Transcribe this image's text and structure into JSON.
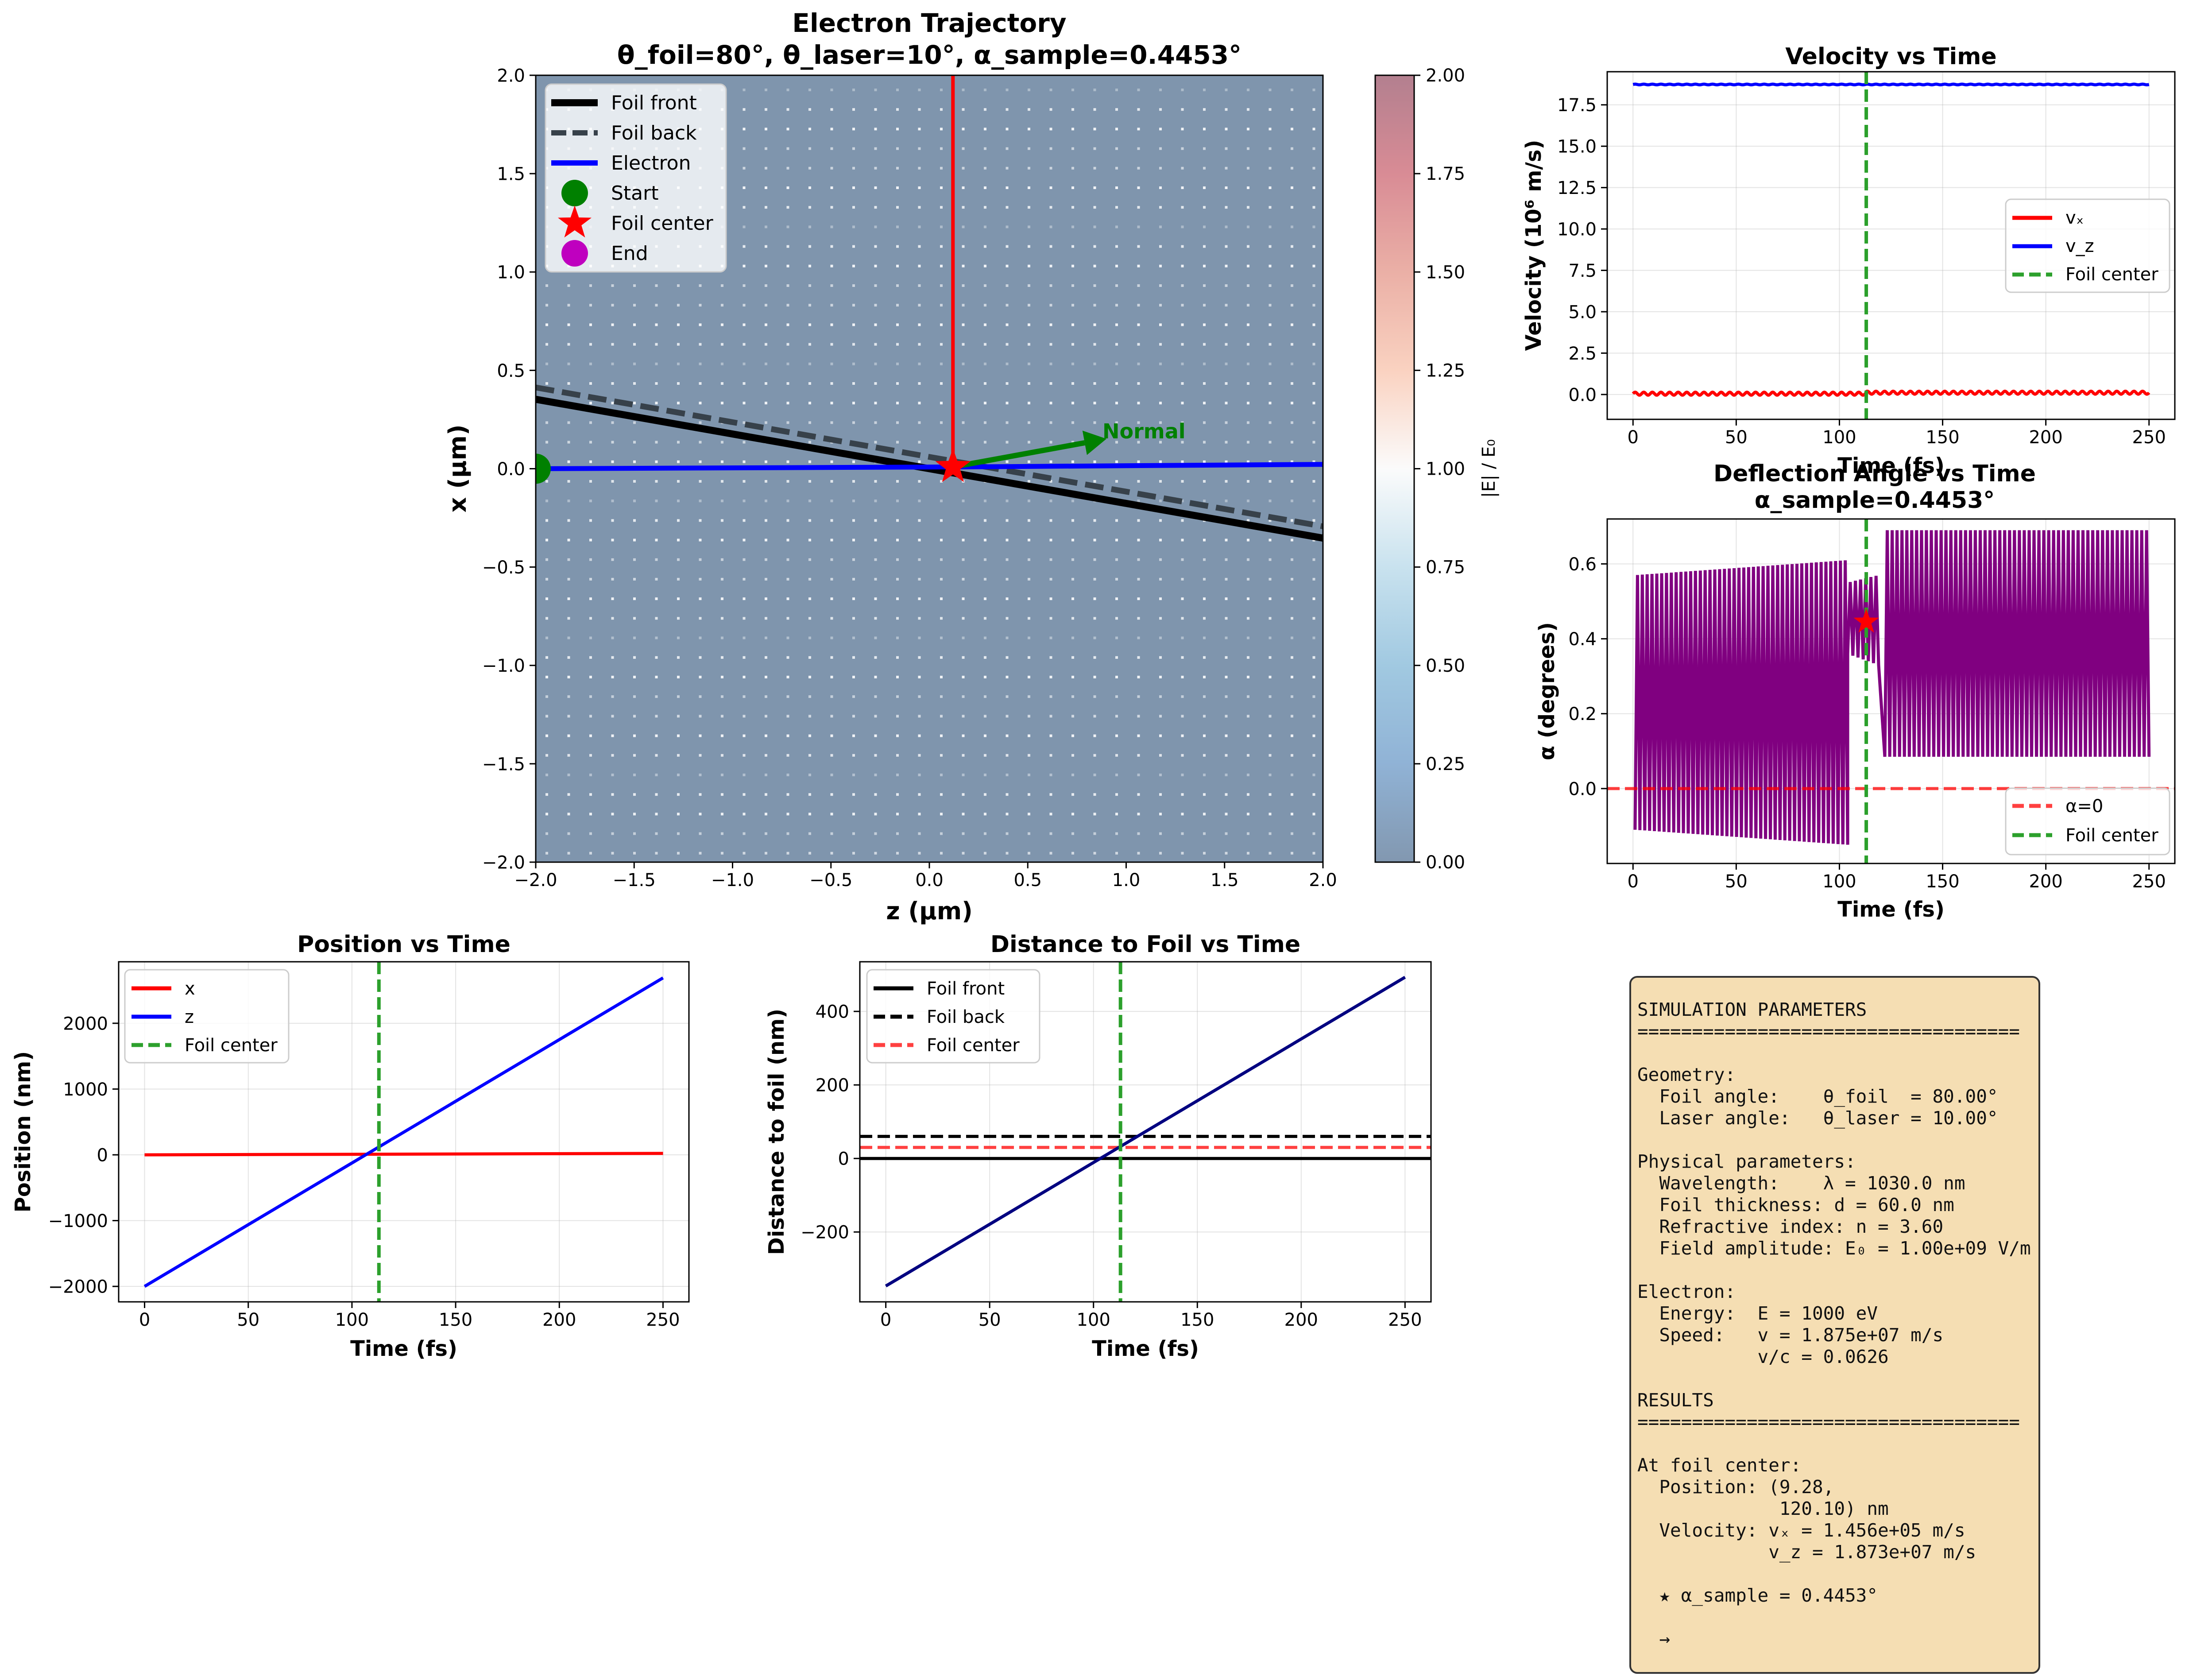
{
  "chart_data": [
    {
      "id": "trajectory",
      "type": "line",
      "title": "Electron Trajectory",
      "subtitle": "θ_foil=80°, θ_laser=10°, α_sample=0.4453°",
      "xlabel": "z (μm)",
      "ylabel": "x (μm)",
      "xlim": [
        -2,
        2
      ],
      "ylim": [
        -2,
        2
      ],
      "xticks": [
        "−2.0",
        "−1.5",
        "−1.0",
        "−0.5",
        "0.0",
        "0.5",
        "1.0",
        "1.5",
        "2.0"
      ],
      "yticks": [
        "−2.0",
        "−1.5",
        "−1.0",
        "−0.5",
        "0.0",
        "0.5",
        "1.0",
        "1.5",
        "2.0"
      ],
      "background": "|E| / E₀ field map",
      "colorbar": {
        "label": "|E| / E₀",
        "range": [
          0,
          2
        ],
        "ticks": [
          "0.00",
          "0.25",
          "0.50",
          "0.75",
          "1.00",
          "1.25",
          "1.50",
          "1.75",
          "2.00"
        ]
      },
      "legend_position": "top-left",
      "series": [
        {
          "name": "Foil front",
          "color": "#000000",
          "style": "solid",
          "x": [
            -2.0,
            2.0
          ],
          "y": [
            0.353,
            -0.353
          ]
        },
        {
          "name": "Foil back",
          "color": "#37414a",
          "style": "dashed",
          "x": [
            -2.0,
            2.0
          ],
          "y": [
            0.413,
            -0.293
          ]
        },
        {
          "name": "Electron",
          "color": "#0000ff",
          "style": "solid",
          "x": [
            -2.0,
            0.12,
            2.0
          ],
          "y": [
            0.0,
            0.009,
            0.022
          ]
        },
        {
          "name": "",
          "color": "#ff0000",
          "style": "solid",
          "x": [
            0.12,
            0.12
          ],
          "y": [
            0.009,
            2.0
          ]
        }
      ],
      "markers": [
        {
          "name": "Start",
          "shape": "circle",
          "color": "#008000",
          "x": -2.0,
          "y": 0.0
        },
        {
          "name": "Foil center",
          "shape": "star",
          "color": "#ff0000",
          "x": 0.12,
          "y": 0.009
        },
        {
          "name": "End",
          "shape": "circle",
          "color": "#bf00bf",
          "x": null,
          "y": null
        }
      ],
      "annotation": {
        "text": "Normal",
        "color": "#008000",
        "x_from": 0.12,
        "y_from": 0.009,
        "x_to": 0.9,
        "y_to": 0.152
      }
    },
    {
      "id": "velocity",
      "type": "line",
      "title": "Velocity vs Time",
      "xlabel": "Time (fs)",
      "ylabel": "Velocity (10⁶ m/s)",
      "xlim": [
        -12.5,
        262.5
      ],
      "ylim": [
        -1.5,
        19.5
      ],
      "xticks": [
        0,
        50,
        100,
        150,
        200,
        250
      ],
      "yticks": [
        "0.0",
        "2.5",
        "5.0",
        "7.5",
        "10.0",
        "12.5",
        "15.0",
        "17.5"
      ],
      "grid": true,
      "legend_position": "center-right",
      "series": [
        {
          "name": "vₓ",
          "color": "#ff0000",
          "mean": 0.05,
          "amplitude": 0.09,
          "periods": 60,
          "range": [
            0,
            250
          ]
        },
        {
          "name": "v_z",
          "color": "#0000ff",
          "mean": 18.73,
          "amplitude": 0.02,
          "periods": 60,
          "range": [
            0,
            250
          ]
        }
      ],
      "vline": {
        "name": "Foil center",
        "x": 113,
        "color": "#2ca02c"
      }
    },
    {
      "id": "deflection",
      "type": "line",
      "title": "Deflection Angle vs Time",
      "subtitle": "α_sample=0.4453°",
      "xlabel": "Time (fs)",
      "ylabel": "α (degrees)",
      "xlim": [
        -12.5,
        262.5
      ],
      "ylim": [
        -0.2,
        0.72
      ],
      "xticks": [
        0,
        50,
        100,
        150,
        200,
        250
      ],
      "yticks": [
        "0.0",
        "0.2",
        "0.4",
        "0.6"
      ],
      "grid": true,
      "legend_position": "bottom-right",
      "series": [
        {
          "name": "",
          "color": "#800080",
          "segments": [
            {
              "t": [
                1,
                104
              ],
              "min_start": -0.11,
              "min_end": -0.15,
              "max_start": 0.57,
              "max_end": 0.61,
              "cycles": 44
            },
            {
              "t": [
                104,
                119
              ],
              "min_start": 0.36,
              "min_end": 0.33,
              "max_start": 0.55,
              "max_end": 0.57,
              "cycles": 6
            },
            {
              "t": [
                122,
                250
              ],
              "min_start": 0.085,
              "min_end": 0.085,
              "max_start": 0.69,
              "max_end": 0.69,
              "cycles": 54
            }
          ]
        }
      ],
      "hline": {
        "name": "α=0",
        "y": 0,
        "color": "#ff0000"
      },
      "vline": {
        "name": "Foil center",
        "x": 113,
        "color": "#2ca02c"
      },
      "marker": {
        "shape": "star",
        "color": "#ff0000",
        "x": 113,
        "y": 0.4453
      }
    },
    {
      "id": "position",
      "type": "line",
      "title": "Position vs Time",
      "xlabel": "Time (fs)",
      "ylabel": "Position (nm)",
      "xlim": [
        -12.5,
        262.5
      ],
      "ylim": [
        -2235,
        2935
      ],
      "xticks": [
        0,
        50,
        100,
        150,
        200,
        250
      ],
      "yticks": [
        "−2000",
        "−1000",
        "0",
        "1000",
        "2000"
      ],
      "grid": true,
      "legend_position": "top-left",
      "series": [
        {
          "name": "x",
          "color": "#ff0000",
          "x": [
            0,
            113,
            250
          ],
          "y": [
            0,
            9.28,
            22
          ]
        },
        {
          "name": "z",
          "color": "#0000ff",
          "x": [
            0,
            250
          ],
          "y": [
            -2000,
            2690
          ]
        }
      ],
      "vline": {
        "name": "Foil center",
        "x": 113,
        "color": "#2ca02c"
      }
    },
    {
      "id": "distance",
      "type": "line",
      "title": "Distance to Foil vs Time",
      "xlabel": "Time (fs)",
      "ylabel": "Distance to foil (nm)",
      "xlim": [
        -12.5,
        262.5
      ],
      "ylim": [
        -390,
        535
      ],
      "xticks": [
        0,
        50,
        100,
        150,
        200,
        250
      ],
      "yticks": [
        "−200",
        "0",
        "200",
        "400"
      ],
      "grid": true,
      "legend_position": "top-left",
      "series": [
        {
          "name": "",
          "color": "#000080",
          "x": [
            0,
            250
          ],
          "y": [
            -347,
            493
          ]
        }
      ],
      "hlines": [
        {
          "name": "Foil front",
          "y": 0,
          "color": "#000000",
          "style": "solid"
        },
        {
          "name": "Foil back",
          "y": 60,
          "color": "#000000",
          "style": "dashed"
        },
        {
          "name": "Foil center",
          "y": 30,
          "color": "#ff4040",
          "style": "dashed"
        }
      ],
      "vline": {
        "name": "",
        "x": 113,
        "color": "#2ca02c"
      }
    }
  ],
  "parameters_box": {
    "lines": [
      "SIMULATION PARAMETERS",
      "===================================",
      "",
      "Geometry:",
      "  Foil angle:    θ_foil  = 80.00°",
      "  Laser angle:   θ_laser = 10.00°",
      "",
      "Physical parameters:",
      "  Wavelength:    λ = 1030.0 nm",
      "  Foil thickness: d = 60.0 nm",
      "  Refractive index: n = 3.60",
      "  Field amplitude: E₀ = 1.00e+09 V/m",
      "",
      "Electron:",
      "  Energy:  E = 1000 eV",
      "  Speed:   v = 1.875e+07 m/s",
      "           v/c = 0.0626",
      "",
      "RESULTS",
      "===================================",
      "",
      "At foil center:",
      "  Position: (9.28,",
      "             120.10) nm",
      "  Velocity: vₓ = 1.456e+05 m/s",
      "            v_z = 1.873e+07 m/s",
      "",
      "  ★ α_sample = 0.4453°",
      "",
      "  →"
    ]
  }
}
